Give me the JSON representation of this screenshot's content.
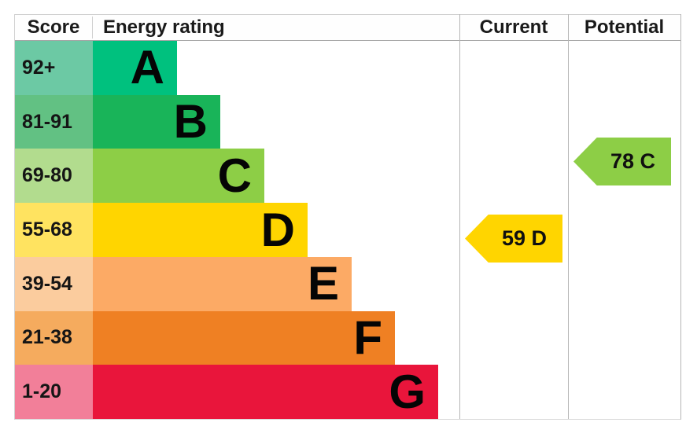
{
  "header": {
    "score": "Score",
    "energy_rating": "Energy rating",
    "current": "Current",
    "potential": "Potential"
  },
  "bands": [
    {
      "range": "92+",
      "letter": "A",
      "bar_color": "#00c17e",
      "range_color": "#6cc9a4"
    },
    {
      "range": "81-91",
      "letter": "B",
      "bar_color": "#19b459",
      "range_color": "#62c183"
    },
    {
      "range": "69-80",
      "letter": "C",
      "bar_color": "#8dce46",
      "range_color": "#b2dc8e"
    },
    {
      "range": "55-68",
      "letter": "D",
      "bar_color": "#ffd500",
      "range_color": "#ffe360"
    },
    {
      "range": "39-54",
      "letter": "E",
      "bar_color": "#fcaa65",
      "range_color": "#fbcc9e"
    },
    {
      "range": "21-38",
      "letter": "F",
      "bar_color": "#ef8023",
      "range_color": "#f5ab5e"
    },
    {
      "range": "1-20",
      "letter": "G",
      "bar_color": "#e9153b",
      "range_color": "#f27f99"
    }
  ],
  "markers": {
    "current": {
      "label": "59 D",
      "score": 59,
      "rating": "D",
      "color": "#ffd500",
      "band_index": 3
    },
    "potential": {
      "label": "78 C",
      "score": 78,
      "rating": "C",
      "color": "#8dce46",
      "band_index": 2
    }
  },
  "chart_data": {
    "type": "bar",
    "title": "Energy rating (EPC)",
    "columns": [
      "Score",
      "Energy rating",
      "Current",
      "Potential"
    ],
    "categories": [
      "A",
      "B",
      "C",
      "D",
      "E",
      "F",
      "G"
    ],
    "score_ranges": [
      "92+",
      "81-91",
      "69-80",
      "55-68",
      "39-54",
      "21-38",
      "1-20"
    ],
    "bar_colors": [
      "#00c17e",
      "#19b459",
      "#8dce46",
      "#ffd500",
      "#fcaa65",
      "#ef8023",
      "#e9153b"
    ],
    "bar_lengths_relative": [
      1,
      1.52,
      2.04,
      2.55,
      3.08,
      3.59,
      4.1
    ],
    "current": {
      "score": 59,
      "rating": "D"
    },
    "potential": {
      "score": 78,
      "rating": "C"
    },
    "legend_position": "none",
    "grid": false
  }
}
